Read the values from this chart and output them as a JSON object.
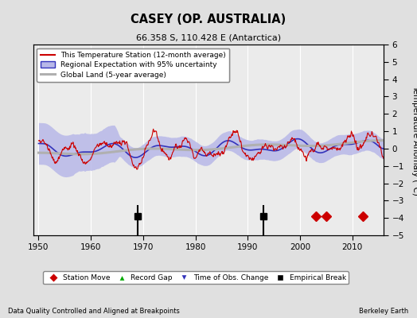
{
  "title": "CASEY (OP. AUSTRALIA)",
  "subtitle": "66.358 S, 110.428 E (Antarctica)",
  "ylabel": "Temperature Anomaly (°C)",
  "footer_left": "Data Quality Controlled and Aligned at Breakpoints",
  "footer_right": "Berkeley Earth",
  "xlim": [
    1949,
    2016
  ],
  "ylim": [
    -5,
    6
  ],
  "yticks": [
    -5,
    -4,
    -3,
    -2,
    -1,
    0,
    1,
    2,
    3,
    4,
    5,
    6
  ],
  "xticks": [
    1950,
    1960,
    1970,
    1980,
    1990,
    2000,
    2010
  ],
  "bg_color": "#e0e0e0",
  "plot_bg_color": "#ebebeb",
  "station_line_color": "#cc0000",
  "regional_line_color": "#3333bb",
  "regional_fill_color": "#b8b8e8",
  "global_line_color": "#b0b0b0",
  "empirical_break_years": [
    1969,
    1993
  ],
  "station_move_years": [
    2003,
    2005,
    2012
  ],
  "marker_y": -3.9,
  "legend_station": "This Temperature Station (12-month average)",
  "legend_regional": "Regional Expectation with 95% uncertainty",
  "legend_global": "Global Land (5-year average)",
  "legend_station_move": "Station Move",
  "legend_record_gap": "Record Gap",
  "legend_tobs": "Time of Obs. Change",
  "legend_empirical": "Empirical Break"
}
